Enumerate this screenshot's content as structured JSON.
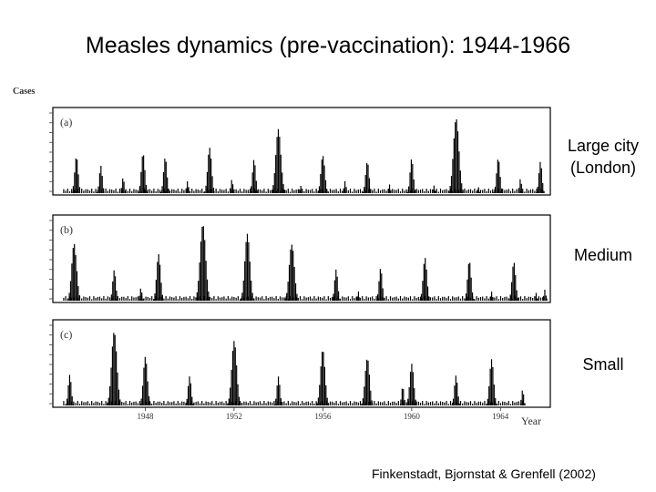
{
  "slide": {
    "title": "Measles dynamics (pre-vaccination): 1944-1966",
    "citation": "Finkenstadt, Bjornstat & Grenfell (2002)"
  },
  "chart_data": {
    "type": "bar",
    "ylabel": "Cases",
    "xlabel": "Year",
    "xlim": [
      1944,
      1966
    ],
    "x_ticks": [
      "1948",
      "1952",
      "1956",
      "1960",
      "1964"
    ],
    "grid": false,
    "colors": {
      "bars": "#000000",
      "frame": "#000000"
    },
    "panels": [
      {
        "tag": "(a)",
        "side_label": [
          "Large city",
          "(London)"
        ],
        "peaks": [
          {
            "year": 1944.9,
            "rel": 0.48
          },
          {
            "year": 1946.0,
            "rel": 0.35
          },
          {
            "year": 1947.0,
            "rel": 0.2
          },
          {
            "year": 1947.9,
            "rel": 0.5
          },
          {
            "year": 1948.9,
            "rel": 0.45
          },
          {
            "year": 1949.9,
            "rel": 0.15
          },
          {
            "year": 1950.9,
            "rel": 0.58
          },
          {
            "year": 1951.9,
            "rel": 0.18
          },
          {
            "year": 1952.9,
            "rel": 0.42
          },
          {
            "year": 1954.0,
            "rel": 0.86
          },
          {
            "year": 1955.0,
            "rel": 0.1
          },
          {
            "year": 1956.0,
            "rel": 0.55
          },
          {
            "year": 1957.0,
            "rel": 0.15
          },
          {
            "year": 1958.0,
            "rel": 0.45
          },
          {
            "year": 1959.0,
            "rel": 0.12
          },
          {
            "year": 1960.0,
            "rel": 0.43
          },
          {
            "year": 1961.0,
            "rel": 0.1
          },
          {
            "year": 1962.0,
            "rel": 0.97
          },
          {
            "year": 1963.0,
            "rel": 0.08
          },
          {
            "year": 1963.9,
            "rel": 0.45
          },
          {
            "year": 1964.9,
            "rel": 0.18
          },
          {
            "year": 1965.8,
            "rel": 0.4
          }
        ]
      },
      {
        "tag": "(b)",
        "side_label": [
          "Medium"
        ],
        "peaks": [
          {
            "year": 1944.8,
            "rel": 0.8
          },
          {
            "year": 1946.6,
            "rel": 0.4
          },
          {
            "year": 1947.8,
            "rel": 0.18
          },
          {
            "year": 1948.6,
            "rel": 0.58
          },
          {
            "year": 1950.6,
            "rel": 0.98
          },
          {
            "year": 1952.6,
            "rel": 0.84
          },
          {
            "year": 1954.6,
            "rel": 0.82
          },
          {
            "year": 1956.6,
            "rel": 0.4
          },
          {
            "year": 1957.6,
            "rel": 0.12
          },
          {
            "year": 1958.6,
            "rel": 0.42
          },
          {
            "year": 1960.6,
            "rel": 0.55
          },
          {
            "year": 1962.6,
            "rel": 0.5
          },
          {
            "year": 1963.6,
            "rel": 0.12
          },
          {
            "year": 1964.6,
            "rel": 0.52
          },
          {
            "year": 1965.6,
            "rel": 0.1
          },
          {
            "year": 1966.0,
            "rel": 0.14
          }
        ]
      },
      {
        "tag": "(c)",
        "side_label": [
          "Small"
        ],
        "peaks": [
          {
            "year": 1944.6,
            "rel": 0.4
          },
          {
            "year": 1946.6,
            "rel": 0.92
          },
          {
            "year": 1948.0,
            "rel": 0.62
          },
          {
            "year": 1950.0,
            "rel": 0.4
          },
          {
            "year": 1952.0,
            "rel": 0.84
          },
          {
            "year": 1954.0,
            "rel": 0.38
          },
          {
            "year": 1956.0,
            "rel": 0.73
          },
          {
            "year": 1958.0,
            "rel": 0.68
          },
          {
            "year": 1959.6,
            "rel": 0.25
          },
          {
            "year": 1960.0,
            "rel": 0.58
          },
          {
            "year": 1962.0,
            "rel": 0.4
          },
          {
            "year": 1963.6,
            "rel": 0.6
          },
          {
            "year": 1965.0,
            "rel": 0.2
          }
        ]
      }
    ]
  }
}
